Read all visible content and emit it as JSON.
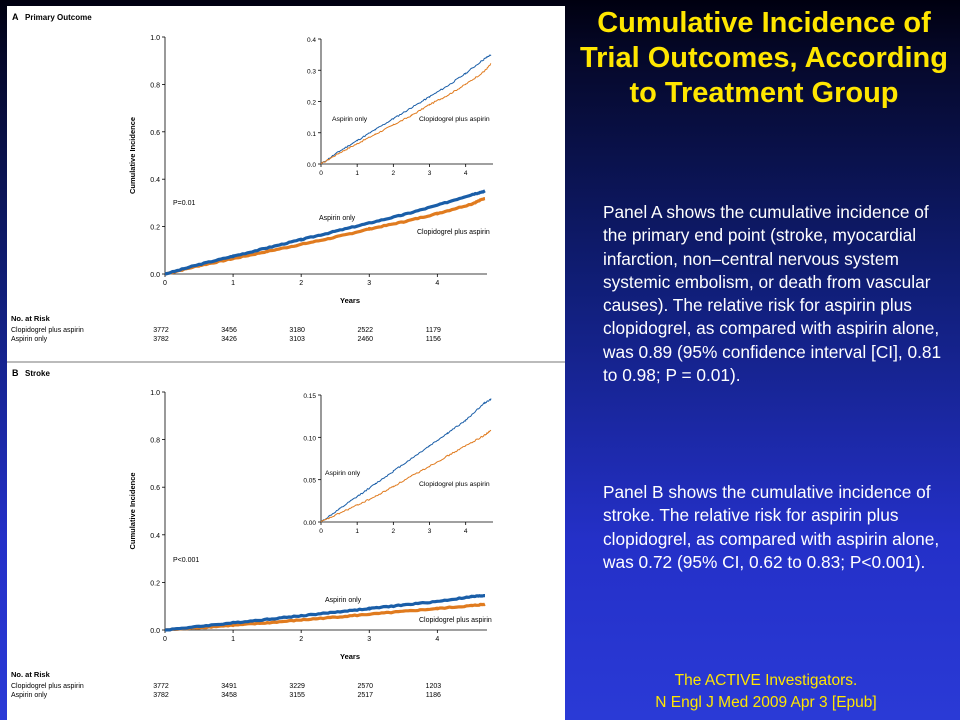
{
  "slide": {
    "title": "Cumulative Incidence of Trial Outcomes, According to Treatment Group",
    "panel_a_text": "Panel A shows the cumulative incidence of the primary end point (stroke, myocardial infarction, non–central nervous system systemic embolism, or death from vascular causes). The relative risk for aspirin plus clopidogrel, as compared with aspirin alone, was 0.89 (95% confidence interval [CI], 0.81 to 0.98; P = 0.01).",
    "panel_b_text": "Panel B shows the cumulative incidence of stroke. The relative risk for aspirin plus clopidogrel, as compared with aspirin alone, was 0.72 (95% CI, 0.62 to 0.83; P<0.001).",
    "citation_line1": "The ACTIVE Investigators.",
    "citation_line2": "N Engl J Med 2009 Apr 3 [Epub]"
  },
  "colors": {
    "title": "#ffe600",
    "body_text": "#ffffff",
    "aspirin_only": "#1a5ea8",
    "clopidogrel_plus_aspirin": "#e07b1f"
  },
  "chart_data": [
    {
      "panel": "A",
      "type": "line",
      "panel_title": "Primary Outcome",
      "xlabel": "Years",
      "ylabel": "Cumulative Incidence",
      "xlim": [
        0,
        4.7
      ],
      "ylim": [
        0,
        1.0
      ],
      "x_ticks": [
        0,
        1,
        2,
        3,
        4
      ],
      "y_ticks": [
        "0.0",
        "0.2",
        "0.4",
        "0.6",
        "0.8",
        "1.0"
      ],
      "p_value": "P=0.01",
      "series": [
        {
          "name": "Aspirin only",
          "x": [
            0,
            0.5,
            1,
            1.5,
            2,
            2.5,
            3,
            3.5,
            4,
            4.5,
            4.7
          ],
          "values": [
            0,
            0.04,
            0.075,
            0.11,
            0.145,
            0.18,
            0.215,
            0.25,
            0.29,
            0.335,
            0.35
          ]
        },
        {
          "name": "Clopidogrel plus aspirin",
          "x": [
            0,
            0.5,
            1,
            1.5,
            2,
            2.5,
            3,
            3.5,
            4,
            4.5,
            4.7
          ],
          "values": [
            0,
            0.035,
            0.065,
            0.095,
            0.125,
            0.155,
            0.19,
            0.22,
            0.255,
            0.295,
            0.32
          ]
        }
      ],
      "inset": {
        "xlim": [
          0,
          4.7
        ],
        "ylim": [
          0,
          0.4
        ],
        "x_ticks": [
          0,
          1,
          2,
          3,
          4
        ],
        "y_ticks": [
          "0.0",
          "0.1",
          "0.2",
          "0.3",
          "0.4"
        ]
      },
      "at_risk": {
        "heading": "No. at Risk",
        "rows": [
          {
            "label": "Clopidogrel plus aspirin",
            "values": [
              "3772",
              "3456",
              "3180",
              "2522",
              "1179"
            ]
          },
          {
            "label": "Aspirin only",
            "values": [
              "3782",
              "3426",
              "3103",
              "2460",
              "1156"
            ]
          }
        ]
      }
    },
    {
      "panel": "B",
      "type": "line",
      "panel_title": "Stroke",
      "xlabel": "Years",
      "ylabel": "Cumulative Incidence",
      "xlim": [
        0,
        4.7
      ],
      "ylim": [
        0,
        1.0
      ],
      "x_ticks": [
        0,
        1,
        2,
        3,
        4
      ],
      "y_ticks": [
        "0.0",
        "0.2",
        "0.4",
        "0.6",
        "0.8",
        "1.0"
      ],
      "p_value": "P<0.001",
      "series": [
        {
          "name": "Aspirin only",
          "x": [
            0,
            0.5,
            1,
            1.5,
            2,
            2.5,
            3,
            3.5,
            4,
            4.5,
            4.7
          ],
          "values": [
            0,
            0.015,
            0.03,
            0.045,
            0.06,
            0.075,
            0.09,
            0.105,
            0.12,
            0.14,
            0.145
          ]
        },
        {
          "name": "Clopidogrel plus aspirin",
          "x": [
            0,
            0.5,
            1,
            1.5,
            2,
            2.5,
            3,
            3.5,
            4,
            4.5,
            4.7
          ],
          "values": [
            0,
            0.01,
            0.02,
            0.03,
            0.042,
            0.054,
            0.066,
            0.078,
            0.09,
            0.102,
            0.108
          ]
        }
      ],
      "inset": {
        "xlim": [
          0,
          4.7
        ],
        "ylim": [
          0,
          0.15
        ],
        "x_ticks": [
          0,
          1,
          2,
          3,
          4
        ],
        "y_ticks": [
          "0.00",
          "0.05",
          "0.10",
          "0.15"
        ]
      },
      "at_risk": {
        "heading": "No. at Risk",
        "rows": [
          {
            "label": "Clopidogrel plus aspirin",
            "values": [
              "3772",
              "3491",
              "3229",
              "2570",
              "1203"
            ]
          },
          {
            "label": "Aspirin only",
            "values": [
              "3782",
              "3458",
              "3155",
              "2517",
              "1186"
            ]
          }
        ]
      }
    }
  ]
}
